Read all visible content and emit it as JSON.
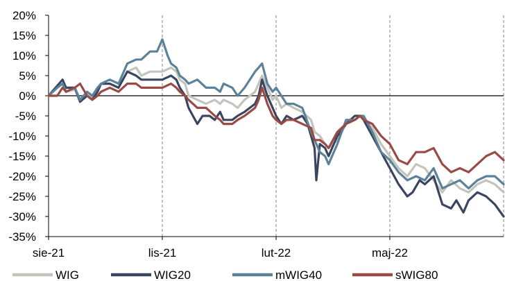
{
  "chart_data": {
    "type": "line",
    "title": "",
    "xlabel": "",
    "ylabel": "",
    "x_tick_labels": [
      "sie-21",
      "lis-21",
      "lut-22",
      "maj-22"
    ],
    "y_ticks": [
      20,
      15,
      10,
      5,
      0,
      -5,
      -10,
      -15,
      -20,
      -25,
      -30,
      -35
    ],
    "y_tick_labels": [
      "20%",
      "15%",
      "10%",
      "5%",
      "0%",
      "-5%",
      "-10%",
      "-15%",
      "-20%",
      "-25%",
      "-30%",
      "-35%"
    ],
    "ylim": [
      -35,
      20
    ],
    "x_unit": "trading days from start of August 2021 (one step per session)",
    "x_range": [
      0,
      260
    ],
    "x_ticks_at": [
      0,
      65,
      130,
      195
    ],
    "grid": {
      "x": "dashed",
      "y": "none",
      "zero_line": true
    },
    "legend_position": "bottom",
    "series": [
      {
        "name": "WIG",
        "color": "#c3c5bd",
        "points": [
          [
            0,
            0
          ],
          [
            5,
            2
          ],
          [
            8,
            3
          ],
          [
            10,
            1
          ],
          [
            15,
            1.5
          ],
          [
            18,
            -1
          ],
          [
            22,
            0.5
          ],
          [
            25,
            -0.5
          ],
          [
            28,
            1.5
          ],
          [
            30,
            3
          ],
          [
            35,
            3
          ],
          [
            40,
            2
          ],
          [
            45,
            6
          ],
          [
            50,
            7
          ],
          [
            53,
            5
          ],
          [
            58,
            6
          ],
          [
            62,
            6
          ],
          [
            65,
            6
          ],
          [
            70,
            7
          ],
          [
            73,
            6
          ],
          [
            75,
            4
          ],
          [
            78,
            3
          ],
          [
            80,
            0
          ],
          [
            85,
            -1
          ],
          [
            90,
            -2
          ],
          [
            95,
            -1
          ],
          [
            98,
            -2
          ],
          [
            100,
            -1
          ],
          [
            105,
            -2
          ],
          [
            108,
            -3
          ],
          [
            112,
            -1
          ],
          [
            115,
            0
          ],
          [
            118,
            1
          ],
          [
            120,
            3
          ],
          [
            122,
            5
          ],
          [
            125,
            2
          ],
          [
            128,
            -1
          ],
          [
            130,
            0
          ],
          [
            133,
            -3
          ],
          [
            136,
            -2
          ],
          [
            140,
            -3
          ],
          [
            145,
            -4
          ],
          [
            150,
            -6
          ],
          [
            152,
            -9
          ],
          [
            155,
            -10
          ],
          [
            158,
            -12
          ],
          [
            160,
            -13
          ],
          [
            165,
            -11
          ],
          [
            170,
            -7
          ],
          [
            175,
            -6
          ],
          [
            178,
            -5
          ],
          [
            180,
            -5.5
          ],
          [
            185,
            -8
          ],
          [
            190,
            -12
          ],
          [
            195,
            -15
          ],
          [
            200,
            -18
          ],
          [
            205,
            -20
          ],
          [
            210,
            -17
          ],
          [
            215,
            -18
          ],
          [
            220,
            -21
          ],
          [
            225,
            -24
          ],
          [
            230,
            -21
          ],
          [
            235,
            -23
          ],
          [
            240,
            -24
          ],
          [
            245,
            -22
          ],
          [
            250,
            -21
          ],
          [
            255,
            -22
          ],
          [
            260,
            -24
          ]
        ]
      },
      {
        "name": "WIG20",
        "color": "#3a4560",
        "points": [
          [
            0,
            0
          ],
          [
            5,
            2.5
          ],
          [
            8,
            4
          ],
          [
            10,
            2
          ],
          [
            15,
            2
          ],
          [
            18,
            -1.5
          ],
          [
            22,
            0
          ],
          [
            25,
            -1
          ],
          [
            28,
            1
          ],
          [
            30,
            3
          ],
          [
            35,
            3
          ],
          [
            40,
            2
          ],
          [
            45,
            6
          ],
          [
            50,
            5
          ],
          [
            53,
            4
          ],
          [
            58,
            4
          ],
          [
            62,
            4
          ],
          [
            65,
            4
          ],
          [
            70,
            5
          ],
          [
            73,
            4
          ],
          [
            75,
            2
          ],
          [
            78,
            0
          ],
          [
            80,
            -3
          ],
          [
            85,
            -7
          ],
          [
            88,
            -5
          ],
          [
            92,
            -5
          ],
          [
            95,
            -6
          ],
          [
            98,
            -4
          ],
          [
            100,
            -6
          ],
          [
            105,
            -6
          ],
          [
            108,
            -5
          ],
          [
            112,
            -4
          ],
          [
            115,
            -3
          ],
          [
            118,
            -2
          ],
          [
            120,
            0
          ],
          [
            122,
            4
          ],
          [
            125,
            0
          ],
          [
            128,
            -3
          ],
          [
            130,
            -5
          ],
          [
            133,
            -7
          ],
          [
            136,
            -5
          ],
          [
            140,
            -6
          ],
          [
            145,
            -5
          ],
          [
            148,
            -7
          ],
          [
            150,
            -10
          ],
          [
            152,
            -13
          ],
          [
            153,
            -21
          ],
          [
            155,
            -12
          ],
          [
            158,
            -13
          ],
          [
            160,
            -15
          ],
          [
            165,
            -10
          ],
          [
            170,
            -7
          ],
          [
            175,
            -5
          ],
          [
            178,
            -5
          ],
          [
            180,
            -6
          ],
          [
            185,
            -10
          ],
          [
            190,
            -14
          ],
          [
            195,
            -18
          ],
          [
            200,
            -22
          ],
          [
            205,
            -25
          ],
          [
            208,
            -24
          ],
          [
            212,
            -21
          ],
          [
            215,
            -22
          ],
          [
            220,
            -20
          ],
          [
            225,
            -27
          ],
          [
            230,
            -28
          ],
          [
            233,
            -26
          ],
          [
            237,
            -29
          ],
          [
            240,
            -26
          ],
          [
            245,
            -24
          ],
          [
            250,
            -25
          ],
          [
            255,
            -27
          ],
          [
            260,
            -30
          ]
        ]
      },
      {
        "name": "mWIG40",
        "color": "#5b8299",
        "points": [
          [
            0,
            0
          ],
          [
            5,
            2
          ],
          [
            8,
            3
          ],
          [
            10,
            1
          ],
          [
            15,
            2
          ],
          [
            18,
            -1
          ],
          [
            22,
            1
          ],
          [
            25,
            0
          ],
          [
            28,
            2
          ],
          [
            30,
            3
          ],
          [
            35,
            4
          ],
          [
            40,
            3
          ],
          [
            45,
            8
          ],
          [
            50,
            9
          ],
          [
            53,
            9
          ],
          [
            58,
            11
          ],
          [
            62,
            11
          ],
          [
            65,
            14
          ],
          [
            68,
            10
          ],
          [
            70,
            8
          ],
          [
            73,
            7
          ],
          [
            75,
            5
          ],
          [
            78,
            4
          ],
          [
            80,
            3
          ],
          [
            85,
            4
          ],
          [
            90,
            2
          ],
          [
            95,
            2
          ],
          [
            98,
            1
          ],
          [
            100,
            3
          ],
          [
            105,
            2
          ],
          [
            108,
            0
          ],
          [
            112,
            2
          ],
          [
            115,
            4
          ],
          [
            118,
            6
          ],
          [
            120,
            7
          ],
          [
            122,
            8
          ],
          [
            125,
            3
          ],
          [
            128,
            1
          ],
          [
            130,
            2
          ],
          [
            133,
            0
          ],
          [
            136,
            -2
          ],
          [
            140,
            -2
          ],
          [
            145,
            -3
          ],
          [
            150,
            -9
          ],
          [
            152,
            -11
          ],
          [
            155,
            -14
          ],
          [
            158,
            -15
          ],
          [
            160,
            -17
          ],
          [
            165,
            -12
          ],
          [
            170,
            -6
          ],
          [
            175,
            -6
          ],
          [
            178,
            -5
          ],
          [
            180,
            -5
          ],
          [
            185,
            -9
          ],
          [
            190,
            -14
          ],
          [
            195,
            -16
          ],
          [
            200,
            -19
          ],
          [
            205,
            -21
          ],
          [
            210,
            -20
          ],
          [
            215,
            -21
          ],
          [
            220,
            -18
          ],
          [
            225,
            -23
          ],
          [
            230,
            -22
          ],
          [
            235,
            -21
          ],
          [
            240,
            -23
          ],
          [
            245,
            -21
          ],
          [
            250,
            -20
          ],
          [
            255,
            -20
          ],
          [
            260,
            -22
          ]
        ]
      },
      {
        "name": "sWIG80",
        "color": "#9a4a44",
        "points": [
          [
            0,
            0
          ],
          [
            5,
            0
          ],
          [
            8,
            2
          ],
          [
            10,
            1
          ],
          [
            15,
            2
          ],
          [
            18,
            3
          ],
          [
            22,
            0
          ],
          [
            25,
            -1
          ],
          [
            28,
            0
          ],
          [
            30,
            1
          ],
          [
            35,
            2
          ],
          [
            40,
            1
          ],
          [
            45,
            3
          ],
          [
            50,
            3
          ],
          [
            53,
            2
          ],
          [
            58,
            2
          ],
          [
            62,
            2
          ],
          [
            65,
            2
          ],
          [
            70,
            3
          ],
          [
            73,
            2
          ],
          [
            75,
            1
          ],
          [
            78,
            0
          ],
          [
            80,
            -1
          ],
          [
            85,
            -3
          ],
          [
            90,
            -3
          ],
          [
            95,
            -5
          ],
          [
            98,
            -6
          ],
          [
            100,
            -7
          ],
          [
            105,
            -7
          ],
          [
            108,
            -6
          ],
          [
            112,
            -5
          ],
          [
            115,
            -4
          ],
          [
            118,
            -3
          ],
          [
            120,
            -1
          ],
          [
            122,
            2
          ],
          [
            125,
            -2
          ],
          [
            128,
            -5
          ],
          [
            130,
            -6
          ],
          [
            133,
            -7
          ],
          [
            136,
            -6
          ],
          [
            140,
            -6
          ],
          [
            145,
            -7
          ],
          [
            150,
            -8
          ],
          [
            152,
            -11
          ],
          [
            155,
            -11
          ],
          [
            158,
            -12
          ],
          [
            160,
            -13
          ],
          [
            165,
            -9
          ],
          [
            170,
            -7
          ],
          [
            175,
            -6
          ],
          [
            178,
            -5
          ],
          [
            180,
            -6
          ],
          [
            185,
            -7
          ],
          [
            190,
            -10
          ],
          [
            195,
            -12
          ],
          [
            200,
            -16
          ],
          [
            205,
            -17
          ],
          [
            210,
            -14
          ],
          [
            215,
            -14
          ],
          [
            220,
            -13
          ],
          [
            225,
            -17
          ],
          [
            230,
            -19
          ],
          [
            235,
            -18
          ],
          [
            240,
            -19
          ],
          [
            245,
            -17
          ],
          [
            250,
            -15
          ],
          [
            255,
            -14
          ],
          [
            260,
            -16
          ]
        ]
      }
    ]
  }
}
